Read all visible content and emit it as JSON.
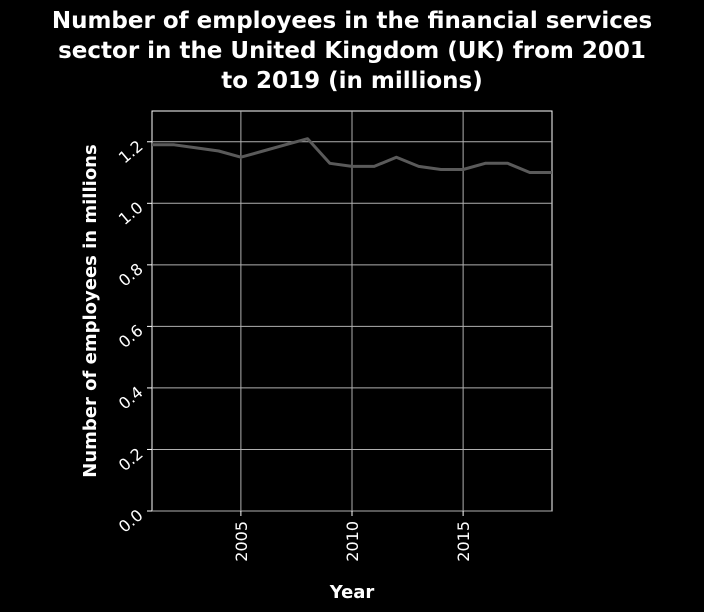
{
  "chart_data": {
    "type": "line",
    "title_lines": [
      "Number of employees in the financial services",
      "sector in the United Kingdom (UK) from 2001",
      "to 2019 (in millions)"
    ],
    "xlabel": "Year",
    "ylabel": "Number of employees in millions",
    "xlim": [
      2001,
      2019
    ],
    "ylim": [
      0.0,
      1.3
    ],
    "x_ticks": [
      2005,
      2010,
      2015
    ],
    "x_tick_labels": [
      "2005",
      "2010",
      "2015"
    ],
    "y_ticks": [
      0.0,
      0.2,
      0.4,
      0.6,
      0.8,
      1.0,
      1.2
    ],
    "y_tick_labels": [
      "0.0",
      "0.2",
      "0.4",
      "0.6",
      "0.8",
      "1.0",
      "1.2"
    ],
    "grid": true,
    "series": [
      {
        "x": [
          2001,
          2002,
          2003,
          2004,
          2005,
          2006,
          2007,
          2008,
          2009,
          2010,
          2011,
          2012,
          2013,
          2014,
          2015,
          2016,
          2017,
          2018,
          2019
        ],
        "y": [
          1.19,
          1.19,
          1.18,
          1.17,
          1.15,
          1.17,
          1.19,
          1.21,
          1.13,
          1.12,
          1.12,
          1.15,
          1.12,
          1.11,
          1.11,
          1.13,
          1.13,
          1.1,
          1.1
        ]
      }
    ]
  },
  "colors": {
    "background": "#000000",
    "plot_background": "#000000",
    "grid": "#b0b0b0",
    "text": "#ffffff",
    "line": "#5a5a5a"
  }
}
